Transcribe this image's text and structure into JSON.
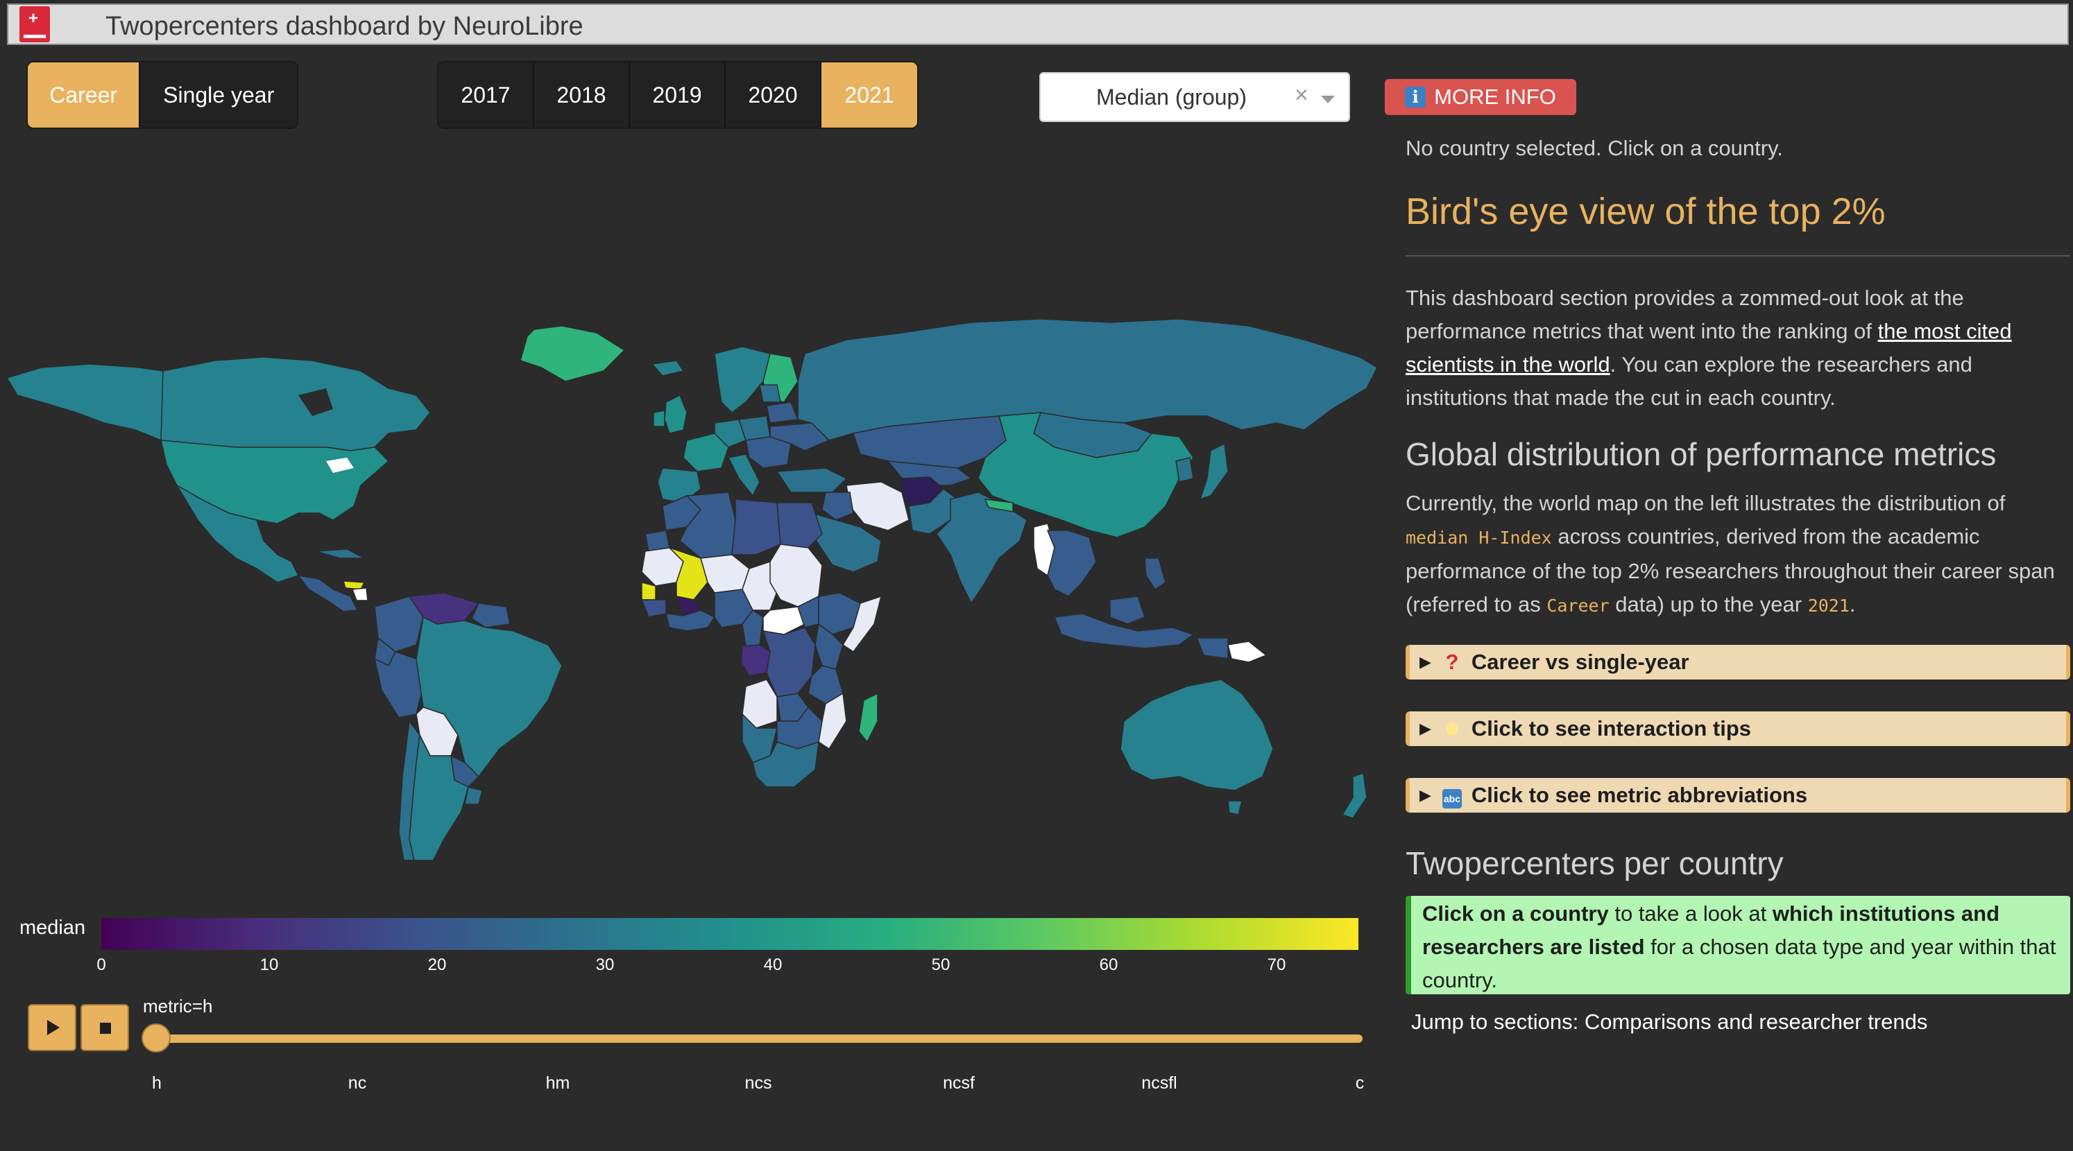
{
  "app": {
    "title": "Twopercenters dashboard by NeuroLibre"
  },
  "data_type": {
    "options": [
      "Career",
      "Single year"
    ],
    "selected": "Career"
  },
  "years": {
    "options": [
      "2017",
      "2018",
      "2019",
      "2020",
      "2021"
    ],
    "selected": "2021"
  },
  "statistic_dropdown": {
    "value": "Median (group)"
  },
  "more_info": {
    "label": "MORE INFO"
  },
  "status": {
    "no_country": "No country selected. Click on a country."
  },
  "birds_eye": {
    "heading": "Bird's eye view of the top 2%",
    "p1": "This dashboard section provides a zommed-out look at the performance metrics that went into the ranking of ",
    "link": "the most cited scientists in the world",
    "p2": ". You can explore the researchers and institutions that made the cut in each country."
  },
  "global": {
    "heading": "Global distribution of performance metrics",
    "t1": "Currently, the world map on the left illustrates the distribution of ",
    "c1": "median H-Index",
    "t2": " across countries, derived from the academic performance of the top 2% researchers throughout their career span (referred to as ",
    "c2": "Career",
    "t3": " data) up to the year ",
    "c3": "2021",
    "t4": "."
  },
  "details": {
    "career_vs_single": "Career vs single-year",
    "interaction_tips": "Click to see interaction tips",
    "metric_abbr": "Click to see metric abbreviations"
  },
  "per_country": {
    "heading": "Twopercenters per country",
    "b1": "Click on a country",
    "t1": " to take a look at ",
    "b2": "which institutions and researchers are listed",
    "t2": " for a chosen data type and year within that country."
  },
  "jump": {
    "text": "Jump to sections: Comparisons and researcher trends"
  },
  "colorbar": {
    "title": "median",
    "ticks": [
      "0",
      "10",
      "20",
      "30",
      "40",
      "50",
      "60",
      "70"
    ],
    "colors": {
      "v5": "#46327e",
      "v20": "#3b528b",
      "v25": "#365d8d",
      "v30": "#2c728e",
      "v35": "#26828e",
      "v40": "#21918c",
      "v48": "#2fb47c",
      "v70": "#e3e418"
    }
  },
  "slider": {
    "label": "metric=h",
    "current": "h",
    "ticks": [
      "h",
      "nc",
      "hm",
      "ncs",
      "ncsf",
      "ncsfl",
      "c"
    ]
  },
  "icons": {
    "play": "play-icon",
    "stop": "stop-icon",
    "info": "info-icon",
    "question": "question-icon",
    "bulb": "lightbulb-icon",
    "abc": "abc-icon",
    "logo": "neurolibre-logo-icon"
  }
}
